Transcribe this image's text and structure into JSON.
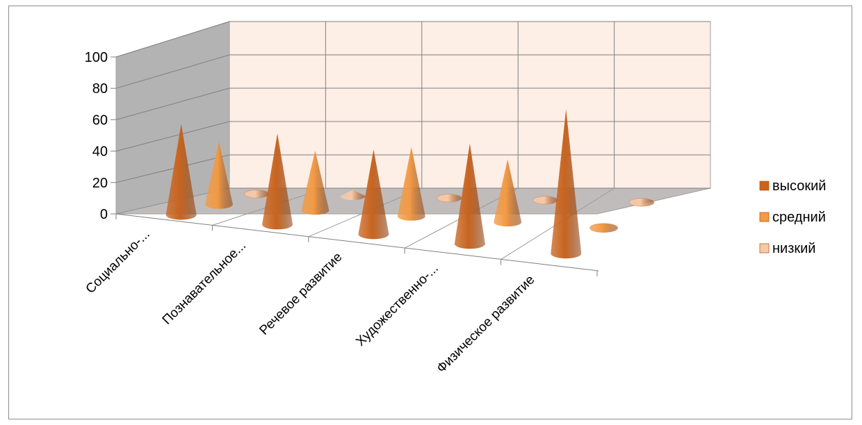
{
  "chart_data": {
    "type": "bar",
    "subtype": "3d-cone",
    "title": "",
    "xlabel": "",
    "ylabel": "",
    "ylim": [
      0,
      100
    ],
    "y_ticks": [
      "0",
      "20",
      "40",
      "60",
      "80",
      "100"
    ],
    "grid": true,
    "legend_position": "right",
    "categories": [
      "Социально-...",
      "Познавательное...",
      "Речевое развитие",
      "Художественно-...",
      "Физическое развитие"
    ],
    "series": [
      {
        "name": "высокий",
        "values": [
          58,
          58,
          54,
          64,
          92
        ]
      },
      {
        "name": "средний",
        "values": [
          40,
          38,
          44,
          40,
          0
        ]
      },
      {
        "name": "низкий",
        "values": [
          2,
          4,
          2,
          0,
          0
        ]
      }
    ],
    "colors": {
      "высокий": "#c8641f",
      "средний": "#f29a44",
      "низкий": "#f8c9a8",
      "back_wall": "#fdeee6",
      "side_wall": "#b3b3b3",
      "floor": "#c0bcbc",
      "grid": "#7f7f7f"
    }
  }
}
